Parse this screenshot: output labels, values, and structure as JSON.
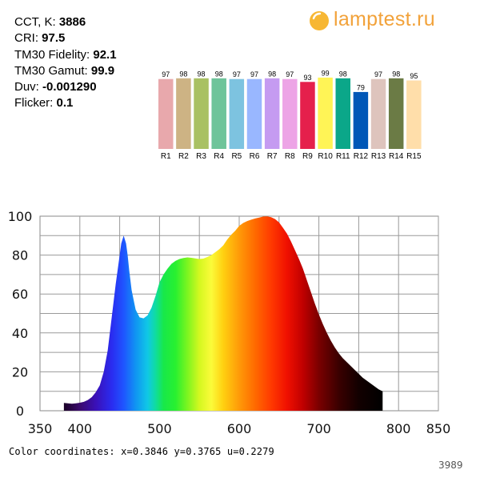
{
  "stats": [
    {
      "label": "CCT, K: ",
      "value": "3886"
    },
    {
      "label": "CRI: ",
      "value": "97.5"
    },
    {
      "label": "TM30 Fidelity: ",
      "value": "92.1"
    },
    {
      "label": "TM30 Gamut: ",
      "value": "99.9"
    },
    {
      "label": "Duv: ",
      "value": "-0.001290"
    },
    {
      "label": "Flicker: ",
      "value": "0.1"
    }
  ],
  "logo": {
    "text": "lamptest.ru",
    "color": "#f2a23a"
  },
  "cri_chart": {
    "type": "bar",
    "categories": [
      "R1",
      "R2",
      "R3",
      "R4",
      "R5",
      "R6",
      "R7",
      "R8",
      "R9",
      "R10",
      "R11",
      "R12",
      "R13",
      "R14",
      "R15"
    ],
    "values": [
      97,
      98,
      98,
      98,
      97,
      97,
      98,
      97,
      93,
      99,
      98,
      79,
      97,
      98,
      95
    ],
    "colors": [
      "#e8a8ac",
      "#cdb384",
      "#a9c163",
      "#6ec49a",
      "#7dc3e0",
      "#99b7ff",
      "#c59bf1",
      "#eda4e6",
      "#e5204c",
      "#fff456",
      "#0ba789",
      "#0057b7",
      "#dec4bd",
      "#6b7b45",
      "#ffdeaa"
    ],
    "ylim": [
      0,
      100
    ]
  },
  "chart_data": {
    "type": "area",
    "title": "",
    "xlabel": "",
    "ylabel": "",
    "xlim": [
      350,
      850
    ],
    "ylim": [
      0,
      100
    ],
    "xticks": [
      350,
      400,
      500,
      600,
      700,
      800,
      850
    ],
    "yticks": [
      0,
      20,
      40,
      60,
      80,
      100
    ],
    "grid": true,
    "fill": "visible-spectrum gradient",
    "series": [
      {
        "x": [
          380,
          385,
          390,
          395,
          400,
          405,
          410,
          415,
          420,
          425,
          430,
          435,
          440,
          445,
          450,
          452,
          455,
          458,
          460,
          462,
          465,
          470,
          475,
          480,
          485,
          490,
          495,
          500,
          505,
          510,
          515,
          520,
          525,
          530,
          535,
          540,
          545,
          550,
          555,
          560,
          565,
          570,
          575,
          580,
          585,
          590,
          595,
          600,
          605,
          610,
          615,
          620,
          625,
          630,
          635,
          640,
          645,
          650,
          655,
          660,
          665,
          670,
          675,
          680,
          685,
          690,
          695,
          700,
          705,
          710,
          715,
          720,
          725,
          730,
          735,
          740,
          745,
          750,
          755,
          760,
          765,
          770,
          775,
          780
        ],
        "y": [
          4,
          3.8,
          3.6,
          3.8,
          4.1,
          4.6,
          5.5,
          7,
          9.5,
          13,
          20,
          31,
          48,
          65,
          80,
          86,
          90,
          86,
          80,
          72,
          62,
          52,
          48,
          47.5,
          49,
          53,
          59,
          66,
          70,
          73,
          75.5,
          77,
          78,
          78.5,
          78.8,
          78.6,
          78.3,
          78,
          78.2,
          79,
          80,
          81.5,
          83,
          85,
          88,
          90.5,
          92.5,
          95,
          96.5,
          97.5,
          98.2,
          98.8,
          99.3,
          99.8,
          99.9,
          99.5,
          98.5,
          96.8,
          94,
          91,
          87,
          82.5,
          78,
          73,
          67,
          61,
          55,
          49.5,
          44.5,
          40,
          36,
          32.5,
          29.5,
          27,
          25,
          23,
          21,
          19,
          17,
          15.5,
          14,
          12.5,
          11,
          10
        ]
      }
    ]
  },
  "coords_text": "Color coordinates: x=0.3846 y=0.3765 u=0.2279",
  "image_id": "3989"
}
